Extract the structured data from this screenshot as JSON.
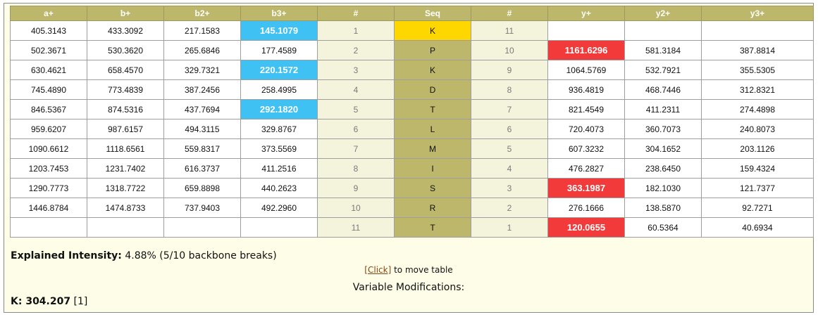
{
  "headers": [
    "a+",
    "b+",
    "b2+",
    "b3+",
    "#",
    "Seq",
    "#",
    "y+",
    "y2+",
    "y3+"
  ],
  "rows": [
    {
      "a": "405.3143",
      "b": "433.3092",
      "b2": "217.1583",
      "b3": "145.1079",
      "n": "1",
      "seq": "K",
      "m": "11",
      "y": "",
      "y2": "",
      "y3": ""
    },
    {
      "a": "502.3671",
      "b": "530.3620",
      "b2": "265.6846",
      "b3": "177.4589",
      "n": "2",
      "seq": "P",
      "m": "10",
      "y": "1161.6296",
      "y2": "581.3184",
      "y3": "387.8814"
    },
    {
      "a": "630.4621",
      "b": "658.4570",
      "b2": "329.7321",
      "b3": "220.1572",
      "n": "3",
      "seq": "K",
      "m": "9",
      "y": "1064.5769",
      "y2": "532.7921",
      "y3": "355.5305"
    },
    {
      "a": "745.4890",
      "b": "773.4839",
      "b2": "387.2456",
      "b3": "258.4995",
      "n": "4",
      "seq": "D",
      "m": "8",
      "y": "936.4819",
      "y2": "468.7446",
      "y3": "312.8321"
    },
    {
      "a": "846.5367",
      "b": "874.5316",
      "b2": "437.7694",
      "b3": "292.1820",
      "n": "5",
      "seq": "T",
      "m": "7",
      "y": "821.4549",
      "y2": "411.2311",
      "y3": "274.4898"
    },
    {
      "a": "959.6207",
      "b": "987.6157",
      "b2": "494.3115",
      "b3": "329.8767",
      "n": "6",
      "seq": "L",
      "m": "6",
      "y": "720.4073",
      "y2": "360.7073",
      "y3": "240.8073"
    },
    {
      "a": "1090.6612",
      "b": "1118.6561",
      "b2": "559.8317",
      "b3": "373.5569",
      "n": "7",
      "seq": "M",
      "m": "5",
      "y": "607.3232",
      "y2": "304.1652",
      "y3": "203.1126"
    },
    {
      "a": "1203.7453",
      "b": "1231.7402",
      "b2": "616.3737",
      "b3": "411.2516",
      "n": "8",
      "seq": "I",
      "m": "4",
      "y": "476.2827",
      "y2": "238.6450",
      "y3": "159.4324"
    },
    {
      "a": "1290.7773",
      "b": "1318.7722",
      "b2": "659.8898",
      "b3": "440.2623",
      "n": "9",
      "seq": "S",
      "m": "3",
      "y": "363.1987",
      "y2": "182.1030",
      "y3": "121.7377"
    },
    {
      "a": "1446.8784",
      "b": "1474.8733",
      "b2": "737.9403",
      "b3": "492.2960",
      "n": "10",
      "seq": "R",
      "m": "2",
      "y": "276.1666",
      "y2": "138.5870",
      "y3": "92.7271"
    },
    {
      "a": "",
      "b": "",
      "b2": "",
      "b3": "",
      "n": "11",
      "seq": "T",
      "m": "1",
      "y": "120.0655",
      "y2": "60.5364",
      "y3": "40.6934"
    }
  ],
  "explained": {
    "label": "Explained Intensity:",
    "value": "4.88% (5/10 backbone breaks)"
  },
  "click": {
    "link": "[Click]",
    "text": "to move table"
  },
  "varmods": {
    "title": "Variable Modifications:",
    "label": "K: 304.207",
    "value": "[1]"
  },
  "colors": {
    "header_bg": "#bdb76b",
    "seq_bg": "#bdb76b",
    "seq_highlight": "#ffd700",
    "b_ion_match": "#3fc2f3",
    "y_ion_match": "#f23a3a",
    "panel_bg": "#fefee8"
  }
}
